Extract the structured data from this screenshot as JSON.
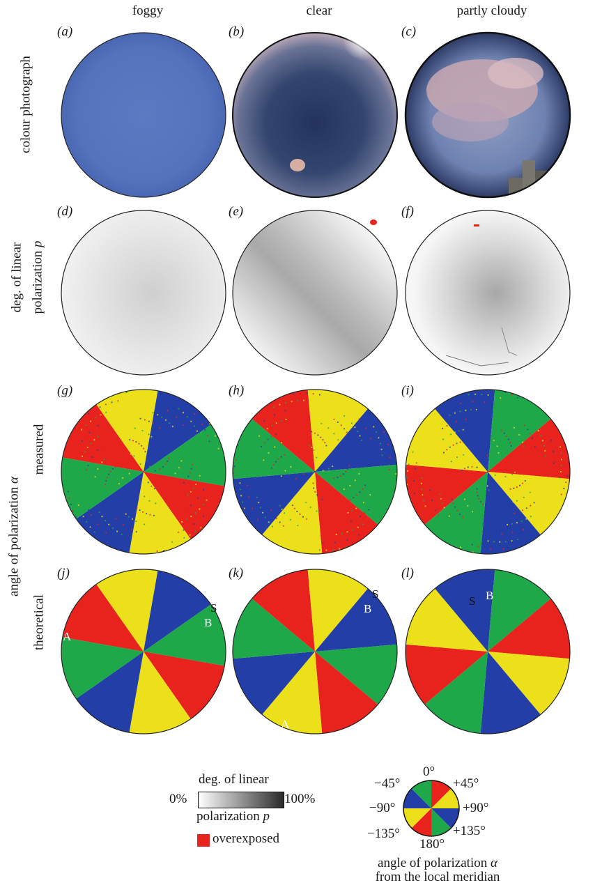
{
  "columns": [
    "foggy",
    "clear",
    "partly cloudy"
  ],
  "rows": {
    "photo": "colour photograph",
    "dop_line1": "deg. of linear",
    "dop_line2": "polarization ",
    "dop_symbol": "p",
    "aop": "angle of polarization ",
    "aop_symbol": "α",
    "measured": "measured",
    "theoretical": "theoretical"
  },
  "panels": [
    {
      "letter": "a"
    },
    {
      "letter": "b"
    },
    {
      "letter": "c"
    },
    {
      "letter": "d"
    },
    {
      "letter": "e"
    },
    {
      "letter": "f"
    },
    {
      "letter": "g"
    },
    {
      "letter": "h"
    },
    {
      "letter": "i"
    },
    {
      "letter": "j"
    },
    {
      "letter": "k"
    },
    {
      "letter": "l"
    }
  ],
  "points": {
    "A": "A",
    "B": "B",
    "S": "S"
  },
  "legend": {
    "dop_title": "deg. of linear",
    "dop_min": "0%",
    "dop_max": "100%",
    "dop_bottom": "polarization ",
    "dop_symbol": "p",
    "overexposed": "overexposed",
    "aop_ticks": {
      "t0": "0°",
      "tp45": "+45°",
      "tm45": "−45°",
      "tp90": "+90°",
      "tm90": "−90°",
      "tp135": "+135°",
      "tm135": "−135°",
      "t180": "180°"
    },
    "aop_caption1": "angle of polarization ",
    "aop_symbol": "α",
    "aop_caption2": "from the local meridian"
  },
  "colors": {
    "red": "#e8221c",
    "yellow": "#ece01a",
    "green": "#1fa84a",
    "blue": "#243ea8",
    "sky_foggy": "#5b78bf",
    "overexposed": "#e8221c"
  }
}
